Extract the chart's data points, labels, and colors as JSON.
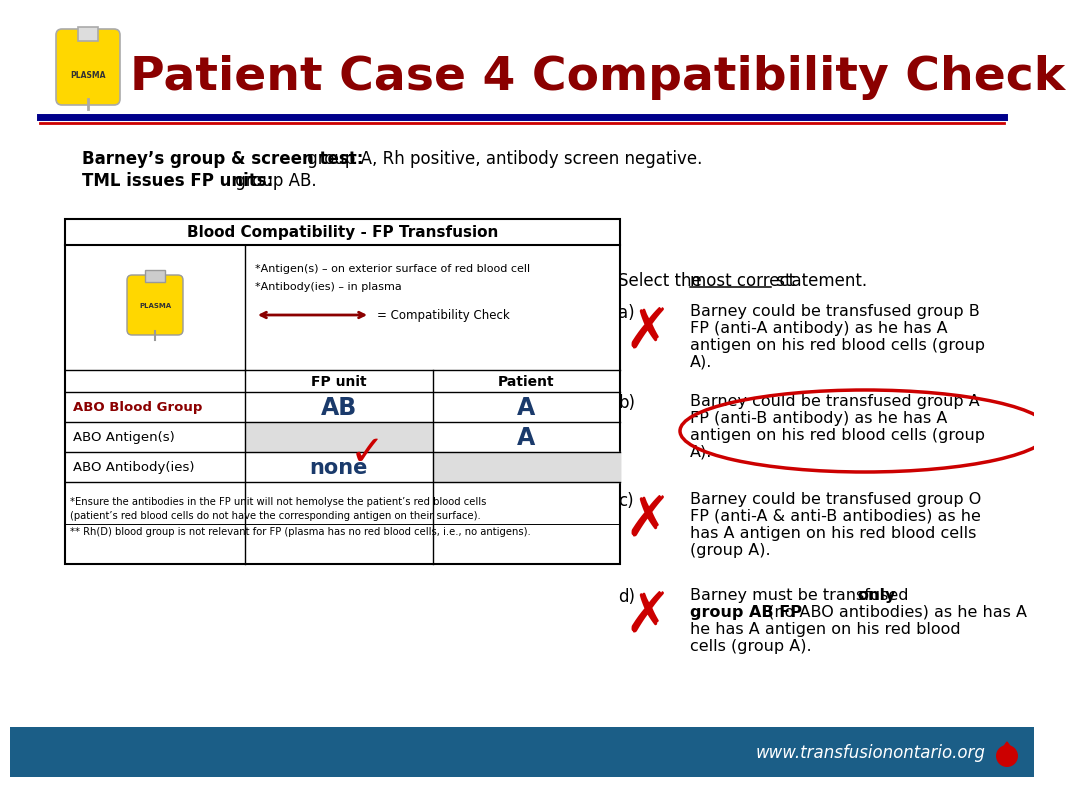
{
  "title": "Patient Case 4 Compatibility Check",
  "title_color": "#8B0000",
  "header_line_color1": "#00008B",
  "header_line_color2": "#CC0000",
  "bg_color": "#FFFFFF",
  "footer_bg_color": "#1B5E87",
  "footer_text": "www.transfusionontario.org",
  "footer_text_color": "#FFFFFF",
  "intro_bold1": "Barney’s group & screen test:",
  "intro_text1": " group A, Rh positive, antibody screen negative.",
  "intro_bold2": "TML issues FP units:",
  "intro_text2": " group AB.",
  "table_title": "Blood Compatibility - FP Transfusion",
  "table_note1": "*Antigen(s) – on exterior surface of red blood cell",
  "table_note2": "*Antibody(ies) – in plasma",
  "table_arrow_label": "= Compatibility Check",
  "table_col1": "FP unit",
  "table_col2": "Patient",
  "row1_label": "ABO Blood Group",
  "row1_val1": "AB",
  "row1_val2": "A",
  "row2_label": "ABO Antigen(s)",
  "row2_val2": "A",
  "row3_label": "ABO Antibody(ies)",
  "row3_val1": "none",
  "table_footer1": "*Ensure the antibodies in the FP unit will not hemolyse the patient’s red blood cells",
  "table_footer2": "(patient’s red blood cells do not have the corresponding antigen on their surface).",
  "table_footer3": "** Rh(D) blood group is not relevant for FP (plasma has no red blood cells, i.e., no antigens).",
  "select_text1": "Select the ",
  "select_underline": "most correct",
  "select_text2": " statement.",
  "opt_a_letter": "a)",
  "opt_a_lines": [
    "Barney could be transfused group B",
    "FP (anti-A antibody) as he has A",
    "antigen on his red blood cells (group",
    "A)."
  ],
  "opt_b_letter": "b)",
  "opt_b_lines": [
    "Barney could be transfused group A",
    "FP (anti-B antibody) as he has A",
    "antigen on his red blood cells (group",
    "A)."
  ],
  "opt_c_letter": "c)",
  "opt_c_lines": [
    "Barney could be transfused group O",
    "FP (anti-A & anti-B antibodies) as he",
    "has A antigen on his red blood cells",
    "(group A)."
  ],
  "opt_d_letter": "d)",
  "opt_d_line1_normal": "Barney must be transfused ",
  "opt_d_line1_bold": "only",
  "opt_d_line2_bold": "group AB FP",
  "opt_d_line2_normal": " (no ABO antibodies) as he has A",
  "opt_d_line3": "antigen on his red blood cells (group A).",
  "opt_d_line4": "",
  "abo_label_color": "#8B0000",
  "ab_val_color": "#1a3a6b",
  "none_val_color": "#1a3a6b",
  "plasma_bg": "#FFD700",
  "red_x_color": "#CC0000",
  "circle_color": "#CC0000"
}
